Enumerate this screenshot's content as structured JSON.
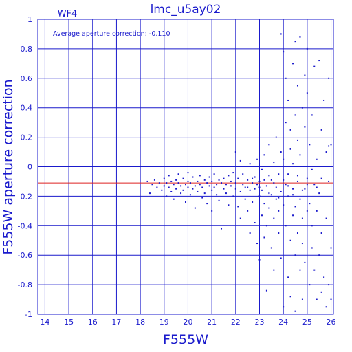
{
  "chart_data": {
    "type": "scatter",
    "title": "lmc_u5ay02",
    "panel_label": "WF4",
    "xlabel": "F555W",
    "ylabel": "F555W aperture correction",
    "annotation": "Average aperture correction: -0.110",
    "xlim": [
      13.7,
      26.1
    ],
    "ylim": [
      -1,
      1
    ],
    "x_ticks": [
      "14",
      "15",
      "16",
      "17",
      "18",
      "19",
      "20",
      "21",
      "22",
      "23",
      "24",
      "25",
      "26"
    ],
    "y_ticks": [
      "1",
      "0.8",
      "0.6",
      "0.4",
      "0.2",
      "0",
      "-0.2",
      "-0.4",
      "-0.6",
      "-0.8",
      "-1"
    ],
    "grid": true,
    "reference_line": {
      "y": -0.11,
      "color": "#dd2222"
    },
    "colors": {
      "axes": "#1a1acc",
      "points": "#1a1acc"
    },
    "points": [
      [
        18.3,
        -0.1
      ],
      [
        18.4,
        -0.18
      ],
      [
        18.5,
        -0.12
      ],
      [
        18.6,
        -0.09
      ],
      [
        18.7,
        -0.14
      ],
      [
        18.8,
        -0.11
      ],
      [
        18.9,
        -0.16
      ],
      [
        19.0,
        -0.13
      ],
      [
        19.0,
        -0.08
      ],
      [
        19.1,
        -0.2
      ],
      [
        19.1,
        -0.11
      ],
      [
        19.2,
        -0.14
      ],
      [
        19.2,
        -0.06
      ],
      [
        19.3,
        -0.17
      ],
      [
        19.3,
        -0.1
      ],
      [
        19.4,
        -0.12
      ],
      [
        19.4,
        -0.22
      ],
      [
        19.5,
        -0.09
      ],
      [
        19.5,
        -0.15
      ],
      [
        19.6,
        -0.11
      ],
      [
        19.6,
        -0.05
      ],
      [
        19.7,
        -0.18
      ],
      [
        19.7,
        -0.13
      ],
      [
        19.8,
        -0.08
      ],
      [
        19.8,
        -0.16
      ],
      [
        19.9,
        -0.12
      ],
      [
        19.9,
        -0.24
      ],
      [
        20.0,
        -0.1
      ],
      [
        20.0,
        -0.14
      ],
      [
        20.0,
        -0.04
      ],
      [
        20.1,
        -0.19
      ],
      [
        20.1,
        -0.11
      ],
      [
        20.2,
        -0.15
      ],
      [
        20.2,
        -0.07
      ],
      [
        20.3,
        -0.13
      ],
      [
        20.3,
        -0.28
      ],
      [
        20.4,
        -0.1
      ],
      [
        20.4,
        -0.17
      ],
      [
        20.5,
        -0.12
      ],
      [
        20.5,
        -0.06
      ],
      [
        20.6,
        -0.21
      ],
      [
        20.6,
        -0.14
      ],
      [
        20.7,
        -0.09
      ],
      [
        20.7,
        -0.18
      ],
      [
        20.8,
        -0.11
      ],
      [
        20.8,
        -0.25
      ],
      [
        20.9,
        -0.13
      ],
      [
        20.9,
        -0.07
      ],
      [
        21.0,
        -0.16
      ],
      [
        21.0,
        -0.1
      ],
      [
        21.0,
        -0.3
      ],
      [
        21.1,
        -0.14
      ],
      [
        21.1,
        -0.05
      ],
      [
        21.2,
        -0.19
      ],
      [
        21.2,
        -0.12
      ],
      [
        21.3,
        -0.09
      ],
      [
        21.3,
        -0.23
      ],
      [
        21.4,
        -0.11
      ],
      [
        21.4,
        -0.42
      ],
      [
        21.5,
        -0.15
      ],
      [
        21.5,
        -0.08
      ],
      [
        21.6,
        -0.18
      ],
      [
        21.6,
        -0.12
      ],
      [
        21.7,
        -0.06
      ],
      [
        21.7,
        -0.26
      ],
      [
        21.8,
        -0.13
      ],
      [
        21.8,
        -0.1
      ],
      [
        21.9,
        -0.2
      ],
      [
        21.9,
        -0.04
      ],
      [
        22.0,
        -0.15
      ],
      [
        22.0,
        -0.11
      ],
      [
        22.0,
        0.1
      ],
      [
        22.1,
        -0.27
      ],
      [
        22.1,
        -0.08
      ],
      [
        22.2,
        -0.17
      ],
      [
        22.2,
        0.04
      ],
      [
        22.2,
        -0.35
      ],
      [
        22.3,
        -0.12
      ],
      [
        22.3,
        -0.05
      ],
      [
        22.4,
        -0.22
      ],
      [
        22.4,
        -0.14
      ],
      [
        22.5,
        -0.09
      ],
      [
        22.5,
        -0.3
      ],
      [
        22.6,
        -0.16
      ],
      [
        22.6,
        0.02
      ],
      [
        22.6,
        -0.45
      ],
      [
        22.7,
        -0.11
      ],
      [
        22.7,
        -0.24
      ],
      [
        22.8,
        -0.07
      ],
      [
        22.8,
        -0.38
      ],
      [
        22.8,
        -0.15
      ],
      [
        22.9,
        -0.52
      ],
      [
        22.9,
        -0.12
      ],
      [
        22.9,
        0.05
      ],
      [
        23.0,
        -0.2
      ],
      [
        23.0,
        -0.63
      ],
      [
        23.0,
        -0.1
      ],
      [
        23.1,
        -0.33
      ],
      [
        23.1,
        -0.02
      ],
      [
        23.1,
        -0.16
      ],
      [
        23.2,
        -0.48
      ],
      [
        23.2,
        -0.25
      ],
      [
        23.2,
        0.08
      ],
      [
        23.3,
        -0.13
      ],
      [
        23.3,
        -0.4
      ],
      [
        23.3,
        -0.84
      ],
      [
        23.4,
        -0.06
      ],
      [
        23.4,
        -0.28
      ],
      [
        23.4,
        0.15
      ],
      [
        23.5,
        -0.19
      ],
      [
        23.5,
        -0.55
      ],
      [
        23.5,
        -0.09
      ],
      [
        23.6,
        -0.35
      ],
      [
        23.6,
        0.03
      ],
      [
        23.6,
        -0.7
      ],
      [
        23.7,
        -0.22
      ],
      [
        23.7,
        -0.14
      ],
      [
        23.7,
        0.2
      ],
      [
        23.8,
        -0.45
      ],
      [
        23.8,
        -0.05
      ],
      [
        23.8,
        -0.3
      ],
      [
        23.9,
        0.9
      ],
      [
        23.9,
        -0.17
      ],
      [
        23.9,
        -0.62
      ],
      [
        23.9,
        0.1
      ],
      [
        24.0,
        -0.26
      ],
      [
        24.0,
        0.78
      ],
      [
        24.0,
        -0.95
      ],
      [
        24.0,
        0.05
      ],
      [
        24.1,
        -0.4
      ],
      [
        24.1,
        0.6
      ],
      [
        24.1,
        -0.12
      ],
      [
        24.1,
        0.3
      ],
      [
        24.2,
        -0.75
      ],
      [
        24.2,
        -0.2
      ],
      [
        24.2,
        0.45
      ],
      [
        24.2,
        -0.05
      ],
      [
        24.3,
        -0.5
      ],
      [
        24.3,
        0.12
      ],
      [
        24.3,
        -0.88
      ],
      [
        24.3,
        0.25
      ],
      [
        24.4,
        -0.33
      ],
      [
        24.4,
        0.7
      ],
      [
        24.4,
        -0.15
      ],
      [
        24.4,
        0.02
      ],
      [
        24.5,
        -0.6
      ],
      [
        24.5,
        0.85
      ],
      [
        24.5,
        -0.27
      ],
      [
        24.5,
        0.35
      ],
      [
        24.5,
        -0.98
      ],
      [
        24.6,
        -0.1
      ],
      [
        24.6,
        0.55
      ],
      [
        24.6,
        -0.45
      ],
      [
        24.6,
        0.18
      ],
      [
        24.7,
        -0.7
      ],
      [
        24.7,
        0.88
      ],
      [
        24.7,
        -0.22
      ],
      [
        24.7,
        0.08
      ],
      [
        24.8,
        -0.52
      ],
      [
        24.8,
        0.4
      ],
      [
        24.8,
        -0.35
      ],
      [
        24.8,
        -0.9
      ],
      [
        24.9,
        0.62
      ],
      [
        24.9,
        -0.15
      ],
      [
        24.9,
        0.27
      ],
      [
        24.9,
        -0.65
      ],
      [
        25.0,
        -0.3
      ],
      [
        25.0,
        0.8
      ],
      [
        25.0,
        -0.08
      ],
      [
        25.0,
        0.5
      ],
      [
        25.1,
        -0.8
      ],
      [
        25.1,
        -0.25
      ],
      [
        25.1,
        0.15
      ],
      [
        25.2,
        -0.55
      ],
      [
        25.2,
        0.35
      ],
      [
        25.2,
        -0.4
      ],
      [
        25.3,
        -0.7
      ],
      [
        25.3,
        -0.12
      ],
      [
        25.3,
        0.68
      ],
      [
        25.4,
        -0.9
      ],
      [
        25.4,
        -0.3
      ],
      [
        25.4,
        0.05
      ],
      [
        25.5,
        -0.6
      ],
      [
        25.5,
        0.72
      ],
      [
        25.5,
        -0.18
      ],
      [
        25.6,
        -0.85
      ],
      [
        25.6,
        0.25
      ],
      [
        25.6,
        -0.45
      ],
      [
        25.7,
        -0.75
      ],
      [
        25.7,
        0.45
      ],
      [
        25.8,
        -0.95
      ],
      [
        25.8,
        0.1
      ],
      [
        25.8,
        -0.35
      ],
      [
        25.9,
        -0.8
      ],
      [
        25.9,
        0.6
      ],
      [
        25.9,
        -0.1
      ],
      [
        26.0,
        -0.9
      ],
      [
        26.0,
        0.15
      ],
      [
        26.0,
        -0.55
      ],
      [
        25.9,
        0.14
      ],
      [
        22.5,
        -0.14
      ],
      [
        22.7,
        -0.08
      ],
      [
        23.0,
        -0.14
      ],
      [
        23.2,
        -0.09
      ],
      [
        23.4,
        -0.18
      ],
      [
        23.6,
        -0.11
      ],
      [
        23.8,
        -0.21
      ],
      [
        24.0,
        -0.09
      ],
      [
        24.2,
        -0.13
      ],
      [
        24.4,
        -0.19
      ],
      [
        24.6,
        -0.06
      ],
      [
        24.8,
        -0.16
      ],
      [
        25.0,
        -0.12
      ],
      [
        25.2,
        -0.02
      ],
      [
        25.4,
        -0.14
      ],
      [
        25.6,
        -0.08
      ]
    ]
  }
}
